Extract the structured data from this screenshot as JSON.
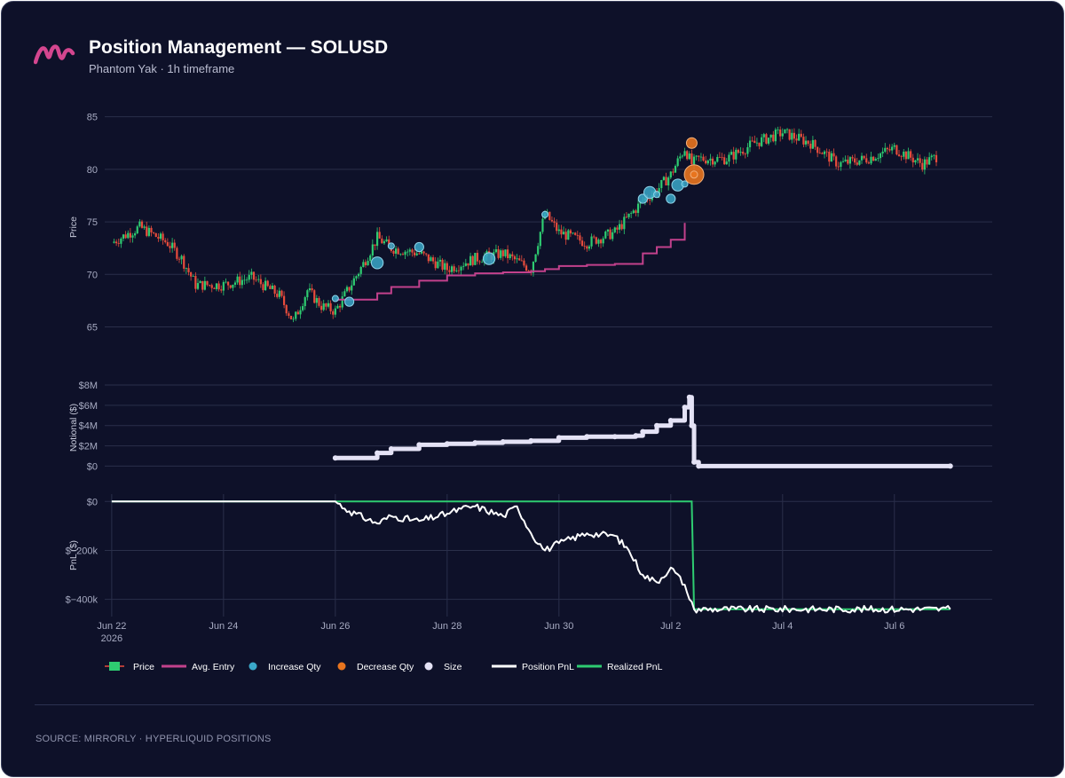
{
  "header": {
    "title": "Position Management — SOLUSD",
    "subtitle": "Phantom Yak · 1h timeframe"
  },
  "footer": {
    "source": "SOURCE: MIRRORLY · HYPERLIQUID POSITIONS"
  },
  "colors": {
    "background": "#0e1129",
    "up": "#2ecc71",
    "down": "#e74c3c",
    "avg_entry": "#c2418c",
    "increase": "#3aa8c9",
    "decrease": "#e8741e",
    "size": "#e4e2f5",
    "position_pnl": "#ffffff",
    "realized_pnl": "#2ecc71",
    "logo": "#d4468f"
  },
  "icons": [
    "mirrorly-logo-icon"
  ],
  "chart_data": {
    "type": "line",
    "x_axis": {
      "ticks": [
        "Jun 22",
        "Jun 24",
        "Jun 26",
        "Jun 28",
        "Jun 30",
        "Jul 2",
        "Jul 4",
        "Jul 6"
      ],
      "year_label": "2026",
      "range": [
        "2026-06-21T21:00",
        "2026-07-07T18:00"
      ]
    },
    "panels": [
      {
        "id": "price",
        "ylabel": "Price",
        "ylim": [
          61.5,
          87.5
        ],
        "yticks": [
          "65",
          "70",
          "75",
          "80",
          "85"
        ],
        "ytick_values": [
          65,
          70,
          75,
          80,
          85
        ]
      },
      {
        "id": "notional",
        "ylabel": "Notional ($)",
        "ylim": [
          -0.4,
          8.0
        ],
        "yticks": [
          "$0",
          "$2M",
          "$4M",
          "$6M",
          "$8M"
        ],
        "ytick_values": [
          0,
          2,
          4,
          6,
          8
        ],
        "unit": "millions USD"
      },
      {
        "id": "pnl",
        "ylabel": "PnL ($)",
        "ylim": [
          -470,
          30
        ],
        "yticks": [
          "$0",
          "$−200k",
          "$−400k"
        ],
        "ytick_values": [
          0,
          -200,
          -400
        ],
        "unit": "thousands USD"
      }
    ],
    "legend": {
      "placement": "bottom",
      "items": [
        {
          "label": "Price",
          "kind": "candle"
        },
        {
          "label": "Avg. Entry",
          "kind": "line",
          "color": "#c2418c"
        },
        {
          "label": "Increase Qty",
          "kind": "dot",
          "color": "#3aa8c9"
        },
        {
          "label": "Decrease Qty",
          "kind": "dot",
          "color": "#e8741e"
        },
        {
          "label": "Size",
          "kind": "dot",
          "color": "#e4e2f5"
        },
        {
          "label": "Position PnL",
          "kind": "line",
          "color": "#ffffff"
        },
        {
          "label": "Realized PnL",
          "kind": "line",
          "color": "#2ecc71"
        }
      ]
    },
    "series": [
      {
        "name": "Price",
        "type": "candlestick",
        "x": [
          "2026-06-22T00:00",
          "2026-06-22T12:00",
          "2026-06-23T00:00",
          "2026-06-23T06:00",
          "2026-06-23T12:00",
          "2026-06-24T00:00",
          "2026-06-24T12:00",
          "2026-06-25T00:00",
          "2026-06-25T06:00",
          "2026-06-25T12:00",
          "2026-06-25T18:00",
          "2026-06-26T00:00",
          "2026-06-26T12:00",
          "2026-06-26T18:00",
          "2026-06-27T00:00",
          "2026-06-27T12:00",
          "2026-06-28T00:00",
          "2026-06-28T12:00",
          "2026-06-29T00:00",
          "2026-06-29T12:00",
          "2026-06-29T18:00",
          "2026-06-30T00:00",
          "2026-06-30T12:00",
          "2026-07-01T00:00",
          "2026-07-01T12:00",
          "2026-07-01T18:00",
          "2026-07-02T00:00",
          "2026-07-02T06:00",
          "2026-07-02T09:00",
          "2026-07-02T12:00",
          "2026-07-03T00:00",
          "2026-07-03T12:00",
          "2026-07-04T00:00",
          "2026-07-04T12:00",
          "2026-07-05T00:00",
          "2026-07-05T12:00",
          "2026-07-06T00:00",
          "2026-07-06T12:00",
          "2026-07-06T18:00"
        ],
        "close": [
          73.0,
          74.5,
          73.0,
          71.5,
          69.0,
          69.0,
          69.7,
          68.0,
          65.5,
          68.5,
          67.0,
          66.5,
          71.0,
          73.5,
          72.5,
          72.0,
          70.5,
          71.5,
          72.0,
          70.5,
          75.8,
          74.0,
          73.0,
          74.0,
          77.0,
          78.0,
          79.5,
          82.0,
          80.5,
          81.0,
          81.0,
          82.5,
          83.5,
          82.5,
          80.5,
          81.0,
          82.0,
          80.5,
          81.2
        ]
      },
      {
        "name": "Avg. Entry",
        "x": [
          "2026-06-26T00:00",
          "2026-06-26T18:00",
          "2026-06-27T00:00",
          "2026-06-27T12:00",
          "2026-06-28T00:00",
          "2026-06-28T12:00",
          "2026-06-29T00:00",
          "2026-06-29T12:00",
          "2026-06-29T18:00",
          "2026-06-30T00:00",
          "2026-06-30T12:00",
          "2026-07-01T00:00",
          "2026-07-01T09:00",
          "2026-07-01T12:00",
          "2026-07-01T18:00",
          "2026-07-02T00:00",
          "2026-07-02T06:00"
        ],
        "values": [
          67.6,
          68.2,
          68.8,
          69.4,
          69.9,
          70.1,
          70.2,
          70.3,
          70.5,
          70.8,
          70.9,
          71.0,
          71.0,
          72.0,
          72.6,
          73.3,
          74.9
        ]
      },
      {
        "name": "Increase Qty",
        "x": [
          "2026-06-26T00:00",
          "2026-06-26T06:00",
          "2026-06-26T18:00",
          "2026-06-27T00:00",
          "2026-06-27T12:00",
          "2026-06-28T18:00",
          "2026-06-29T18:00",
          "2026-07-01T12:00",
          "2026-07-01T15:00",
          "2026-07-01T18:00",
          "2026-07-02T00:00",
          "2026-07-02T03:00",
          "2026-07-02T06:00"
        ],
        "values": [
          67.7,
          67.4,
          71.1,
          72.7,
          72.6,
          71.5,
          75.7,
          77.2,
          77.8,
          77.6,
          77.2,
          78.5,
          78.6
        ]
      },
      {
        "name": "Decrease Qty",
        "x": [
          "2026-07-02T09:00",
          "2026-07-02T10:00",
          "2026-07-02T10:00"
        ],
        "values": [
          82.5,
          79.5,
          79.5
        ]
      },
      {
        "name": "Size",
        "x": [
          "2026-06-26T00:00",
          "2026-06-26T18:00",
          "2026-06-27T00:00",
          "2026-06-27T12:00",
          "2026-06-28T00:00",
          "2026-06-28T12:00",
          "2026-06-29T00:00",
          "2026-06-29T12:00",
          "2026-06-30T00:00",
          "2026-06-30T12:00",
          "2026-07-01T00:00",
          "2026-07-01T09:00",
          "2026-07-01T12:00",
          "2026-07-01T18:00",
          "2026-07-02T00:00",
          "2026-07-02T06:00",
          "2026-07-02T08:00",
          "2026-07-02T09:00",
          "2026-07-02T10:00",
          "2026-07-02T12:00",
          "2026-07-07T00:00"
        ],
        "values": [
          0.8,
          1.3,
          1.7,
          2.1,
          2.2,
          2.3,
          2.4,
          2.5,
          2.8,
          2.9,
          2.9,
          3.0,
          3.4,
          4.0,
          4.5,
          5.8,
          6.8,
          4.0,
          0.4,
          0.0,
          0.0
        ]
      },
      {
        "name": "Position PnL",
        "x": [
          "2026-06-22T00:00",
          "2026-06-26T00:00",
          "2026-06-26T06:00",
          "2026-06-26T18:00",
          "2026-06-27T00:00",
          "2026-06-27T12:00",
          "2026-06-28T00:00",
          "2026-06-28T06:00",
          "2026-06-28T12:00",
          "2026-06-29T00:00",
          "2026-06-29T06:00",
          "2026-06-29T12:00",
          "2026-06-29T18:00",
          "2026-06-30T00:00",
          "2026-06-30T12:00",
          "2026-07-01T00:00",
          "2026-07-01T06:00",
          "2026-07-01T12:00",
          "2026-07-01T18:00",
          "2026-07-02T00:00",
          "2026-07-02T06:00",
          "2026-07-02T08:00",
          "2026-07-02T10:00",
          "2026-07-07T00:00"
        ],
        "values": [
          0,
          0,
          -40,
          -90,
          -60,
          -80,
          -50,
          -30,
          -20,
          -60,
          -20,
          -130,
          -200,
          -170,
          -130,
          -140,
          -200,
          -300,
          -330,
          -270,
          -340,
          -400,
          -440,
          -440
        ]
      },
      {
        "name": "Realized PnL",
        "x": [
          "2026-06-22T00:00",
          "2026-07-02T09:00",
          "2026-07-02T10:00",
          "2026-07-07T00:00"
        ],
        "values": [
          0,
          0,
          -440,
          -440
        ]
      }
    ]
  }
}
